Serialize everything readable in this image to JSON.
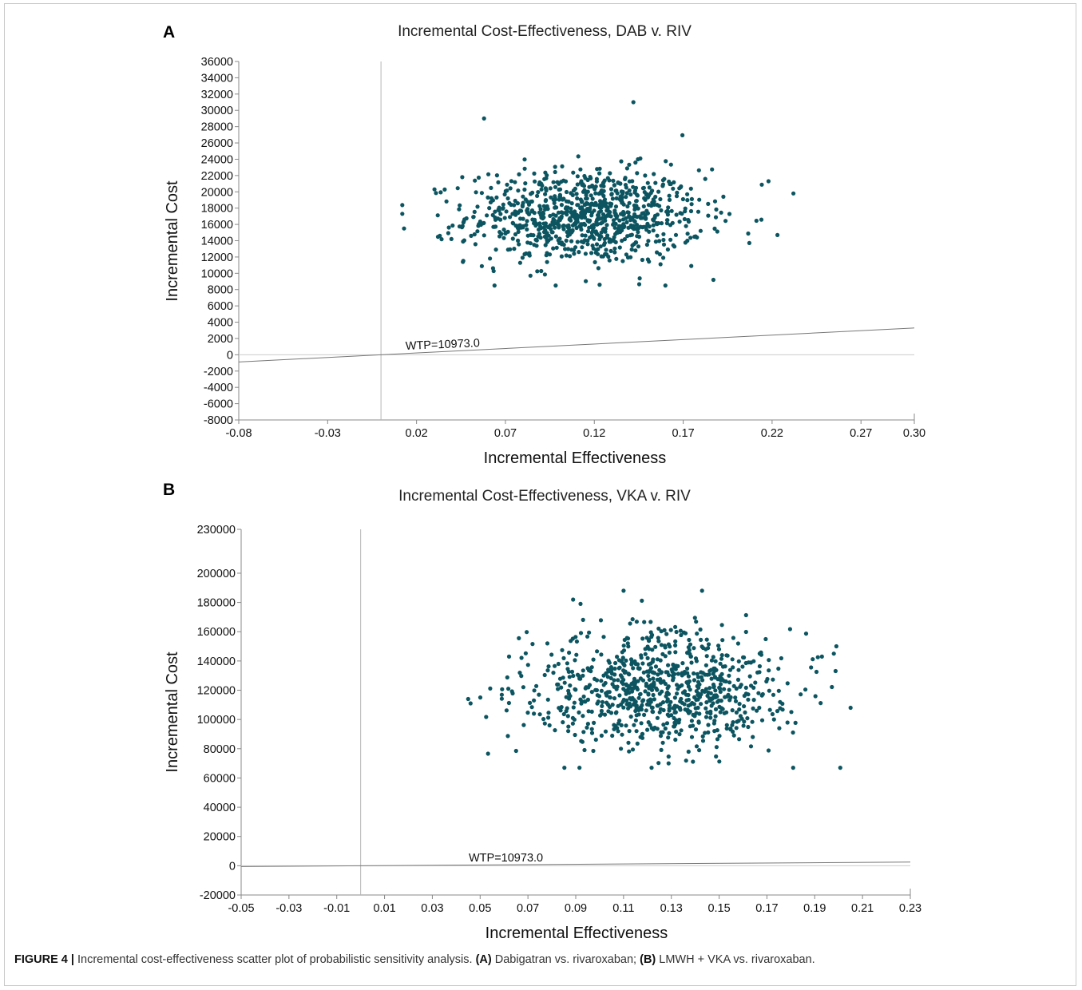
{
  "caption": {
    "figure_label": "FIGURE 4 |",
    "text_1": " Incremental cost-effectiveness scatter plot of probabilistic sensitivity analysis. ",
    "label_a": "(A)",
    "text_a": " Dabigatran vs. rivaroxaban; ",
    "label_b": "(B)",
    "text_b": " LMWH + VKA vs. rivaroxaban."
  },
  "colors": {
    "points": "#0c5560",
    "wtp_line": "#777777",
    "axes": "#888888",
    "zero_line": "#cccccc"
  },
  "chart_data": [
    {
      "panel": "A",
      "type": "scatter",
      "title": "Incremental Cost-Effectiveness, DAB v. RIV",
      "xlabel": "Incremental Effectiveness",
      "ylabel": "Incremental Cost",
      "xlim": [
        -0.08,
        0.3
      ],
      "ylim": [
        -8000,
        36000
      ],
      "xticks": [
        "-0.08",
        "-0.03",
        "0.02",
        "0.07",
        "0.12",
        "0.17",
        "0.22",
        "0.27",
        "0.30"
      ],
      "yticks": [
        "36000",
        "34000",
        "32000",
        "30000",
        "28000",
        "26000",
        "24000",
        "22000",
        "20000",
        "18000",
        "16000",
        "14000",
        "12000",
        "10000",
        "8000",
        "6000",
        "4000",
        "2000",
        "0",
        "-2000",
        "-4000",
        "-6000",
        "-8000"
      ],
      "wtp_label": "WTP=10973.0",
      "wtp": 10973.0,
      "point_cloud": {
        "n": 900,
        "center_x": 0.115,
        "sd_x": 0.033,
        "center_y": 17000,
        "sd_y": 2900,
        "x_range": [
          0.012,
          0.235
        ],
        "y_range": [
          8500,
          31000
        ]
      },
      "outliers": [
        [
          0.142,
          31000
        ],
        [
          0.058,
          29000
        ],
        [
          0.232,
          19800
        ],
        [
          0.223,
          14700
        ],
        [
          0.218,
          21300
        ],
        [
          0.012,
          17300
        ],
        [
          0.013,
          15500
        ],
        [
          0.123,
          8600
        ],
        [
          0.187,
          9200
        ]
      ]
    },
    {
      "panel": "B",
      "type": "scatter",
      "title": "Incremental Cost-Effectiveness, VKA v. RIV",
      "xlabel": "Incremental Effectiveness",
      "ylabel": "Incremental Cost",
      "xlim": [
        -0.05,
        0.23
      ],
      "ylim": [
        -20000,
        230000
      ],
      "xticks": [
        "-0.05",
        "-0.03",
        "-0.01",
        "0.01",
        "0.03",
        "0.05",
        "0.07",
        "0.09",
        "0.11",
        "0.13",
        "0.15",
        "0.17",
        "0.19",
        "0.21",
        "0.23"
      ],
      "yticks": [
        "230000",
        "200000",
        "180000",
        "160000",
        "140000",
        "120000",
        "100000",
        "80000",
        "60000",
        "40000",
        "20000",
        "0",
        "-20000"
      ],
      "wtp_label": "WTP=10973.0",
      "wtp": 10973.0,
      "point_cloud": {
        "n": 850,
        "center_x": 0.125,
        "sd_x": 0.028,
        "center_y": 120000,
        "sd_y": 20000,
        "x_range": [
          0.045,
          0.205
        ],
        "y_range": [
          67000,
          188000
        ]
      },
      "outliers": [
        [
          0.11,
          188000
        ],
        [
          0.181,
          67000
        ],
        [
          0.205,
          108000
        ],
        [
          0.198,
          145000
        ],
        [
          0.045,
          114000
        ],
        [
          0.046,
          111000
        ],
        [
          0.193,
          143000
        ],
        [
          0.092,
          179000
        ]
      ]
    }
  ]
}
